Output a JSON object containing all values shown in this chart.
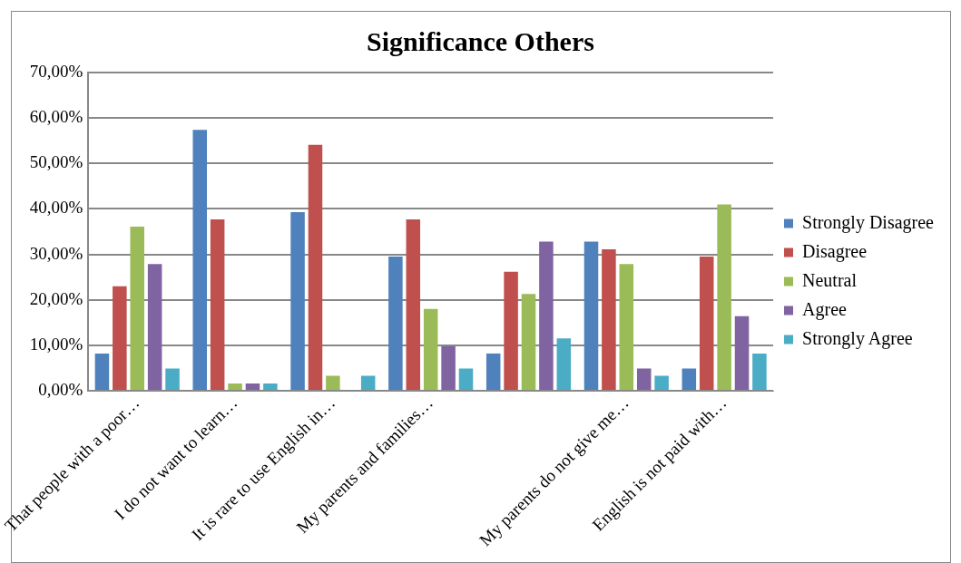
{
  "chart_data": {
    "type": "bar",
    "title": "Significance Others",
    "categories": [
      "That people with a poor…",
      "I do not want to learn…",
      "It is rare to use English in…",
      "My parents and families…",
      null,
      "My parents do not give me…",
      "English is not paid with…"
    ],
    "series": [
      {
        "name": "Strongly Disagree",
        "color": "#4f81bd",
        "values": [
          8.2,
          57.4,
          39.3,
          29.5,
          8.2,
          32.8,
          4.9
        ]
      },
      {
        "name": "Disagree",
        "color": "#c0504d",
        "values": [
          23.0,
          37.7,
          54.1,
          37.7,
          26.2,
          31.1,
          29.5
        ]
      },
      {
        "name": "Neutral",
        "color": "#9bbb59",
        "values": [
          36.1,
          1.6,
          3.3,
          18.0,
          21.3,
          27.9,
          41.0
        ]
      },
      {
        "name": "Agree",
        "color": "#8064a2",
        "values": [
          27.9,
          1.6,
          0,
          9.8,
          32.8,
          4.9,
          16.4
        ]
      },
      {
        "name": "Strongly Agree",
        "color": "#4bacc6",
        "values": [
          4.9,
          1.6,
          3.3,
          4.9,
          11.5,
          3.3,
          8.2
        ]
      }
    ],
    "ylim": [
      0,
      70
    ],
    "yticks": [
      {
        "value": 0,
        "label": "0,00%"
      },
      {
        "value": 10,
        "label": "10,00%"
      },
      {
        "value": 20,
        "label": "20,00%"
      },
      {
        "value": 30,
        "label": "30,00%"
      },
      {
        "value": 40,
        "label": "40,00%"
      },
      {
        "value": 50,
        "label": "50,00%"
      },
      {
        "value": 60,
        "label": "60,00%"
      },
      {
        "value": 70,
        "label": "70,00%"
      }
    ],
    "grid": "y",
    "legend": "right"
  }
}
